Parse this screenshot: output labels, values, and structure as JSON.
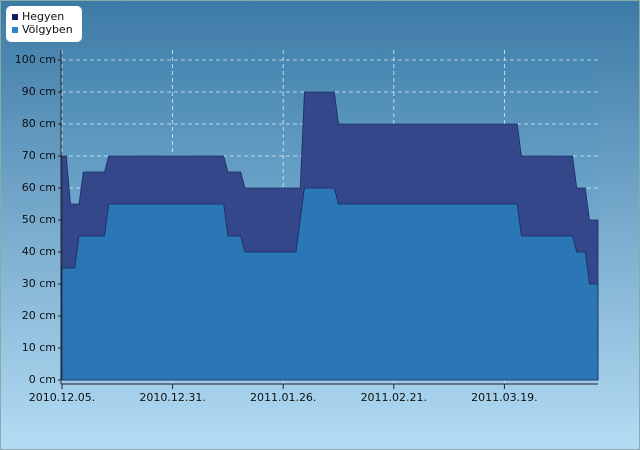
{
  "chart_data": {
    "type": "area",
    "x": [
      "2010-12-05",
      "2010-12-06",
      "2010-12-07",
      "2010-12-08",
      "2010-12-09",
      "2010-12-10",
      "2010-12-15",
      "2010-12-16",
      "2011-01-12",
      "2011-01-13",
      "2011-01-16",
      "2011-01-17",
      "2011-01-29",
      "2011-01-30",
      "2011-01-31",
      "2011-02-01",
      "2011-02-07",
      "2011-02-08",
      "2011-03-22",
      "2011-03-23",
      "2011-04-04",
      "2011-04-05",
      "2011-04-07",
      "2011-04-08",
      "2011-04-10"
    ],
    "series": [
      {
        "name": "Hegyen",
        "color": "#34478a",
        "legend_color": "#0f1f5c",
        "values": [
          70,
          70,
          55,
          55,
          55,
          65,
          65,
          70,
          70,
          65,
          65,
          60,
          60,
          60,
          90,
          90,
          90,
          80,
          80,
          70,
          70,
          60,
          60,
          50,
          50
        ]
      },
      {
        "name": "Völgyben",
        "color": "#2b77b6",
        "legend_color": "#2a86c8",
        "values": [
          35,
          35,
          35,
          35,
          45,
          45,
          45,
          55,
          55,
          45,
          45,
          40,
          40,
          50,
          60,
          60,
          60,
          55,
          55,
          45,
          45,
          40,
          40,
          30,
          30
        ]
      }
    ],
    "xlim": [
      "2010-12-05",
      "2011-04-10"
    ],
    "xticks": [
      {
        "value": "2010-12-05",
        "label": "2010.12.05."
      },
      {
        "value": "2010-12-31",
        "label": "2010.12.31."
      },
      {
        "value": "2011-01-26",
        "label": "2011.01.26."
      },
      {
        "value": "2011-02-21",
        "label": "2011.02.21."
      },
      {
        "value": "2011-03-19",
        "label": "2011.03.19."
      }
    ],
    "ylim": [
      0,
      100
    ],
    "yticks": [
      {
        "value": 0,
        "label": "0 cm"
      },
      {
        "value": 10,
        "label": "10 cm"
      },
      {
        "value": 20,
        "label": "20 cm"
      },
      {
        "value": 30,
        "label": "30 cm"
      },
      {
        "value": 40,
        "label": "40 cm"
      },
      {
        "value": 50,
        "label": "50 cm"
      },
      {
        "value": 60,
        "label": "60 cm"
      },
      {
        "value": 70,
        "label": "70 cm"
      },
      {
        "value": 80,
        "label": "80 cm"
      },
      {
        "value": 90,
        "label": "90 cm"
      },
      {
        "value": 100,
        "label": "100 cm"
      }
    ],
    "grid": true,
    "legend": "top-left"
  }
}
